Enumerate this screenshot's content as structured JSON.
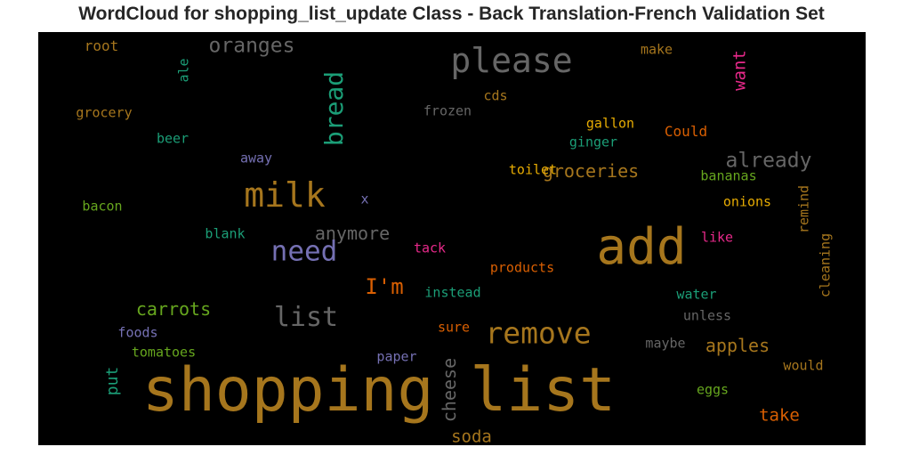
{
  "chart_data": {
    "type": "wordcloud",
    "title": "WordCloud for shopping_list_update Class - Back Translation-French Validation Set",
    "background": "#000000",
    "words": [
      {
        "text": "shopping list",
        "color": "#a6761d"
      },
      {
        "text": "add",
        "color": "#a6761d"
      },
      {
        "text": "please",
        "color": "#666666"
      },
      {
        "text": "milk",
        "color": "#a6761d"
      },
      {
        "text": "need",
        "color": "#7570b3"
      },
      {
        "text": "remove",
        "color": "#a6761d"
      },
      {
        "text": "bread",
        "color": "#1b9e77"
      },
      {
        "text": "list",
        "color": "#666666"
      },
      {
        "text": "oranges",
        "color": "#666666"
      },
      {
        "text": "already",
        "color": "#666666"
      },
      {
        "text": "I'm",
        "color": "#d95f02"
      },
      {
        "text": "groceries",
        "color": "#a6761d"
      },
      {
        "text": "carrots",
        "color": "#66a61e"
      },
      {
        "text": "apples",
        "color": "#a6761d"
      },
      {
        "text": "cheese",
        "color": "#666666"
      },
      {
        "text": "anymore",
        "color": "#666666"
      },
      {
        "text": "want",
        "color": "#e7298a"
      },
      {
        "text": "take",
        "color": "#d95f02"
      },
      {
        "text": "soda",
        "color": "#a6761d"
      },
      {
        "text": "put",
        "color": "#1b9e77"
      },
      {
        "text": "root",
        "color": "#a6761d"
      },
      {
        "text": "ale",
        "color": "#1b9e77"
      },
      {
        "text": "make",
        "color": "#a6761d"
      },
      {
        "text": "cds",
        "color": "#a6761d"
      },
      {
        "text": "grocery",
        "color": "#a6761d"
      },
      {
        "text": "frozen",
        "color": "#666666"
      },
      {
        "text": "beer",
        "color": "#1b9e77"
      },
      {
        "text": "gallon",
        "color": "#e6ab02"
      },
      {
        "text": "ginger",
        "color": "#1b9e77"
      },
      {
        "text": "Could",
        "color": "#d95f02"
      },
      {
        "text": "away",
        "color": "#7570b3"
      },
      {
        "text": "toilet",
        "color": "#e6ab02"
      },
      {
        "text": "bananas",
        "color": "#66a61e"
      },
      {
        "text": "x",
        "color": "#7570b3"
      },
      {
        "text": "remind",
        "color": "#a6761d"
      },
      {
        "text": "bacon",
        "color": "#66a61e"
      },
      {
        "text": "onions",
        "color": "#e6ab02"
      },
      {
        "text": "blank",
        "color": "#1b9e77"
      },
      {
        "text": "tack",
        "color": "#e7298a"
      },
      {
        "text": "like",
        "color": "#e7298a"
      },
      {
        "text": "cleaning",
        "color": "#a6761d"
      },
      {
        "text": "products",
        "color": "#d95f02"
      },
      {
        "text": "instead",
        "color": "#1b9e77"
      },
      {
        "text": "water",
        "color": "#1b9e77"
      },
      {
        "text": "unless",
        "color": "#666666"
      },
      {
        "text": "foods",
        "color": "#7570b3"
      },
      {
        "text": "sure",
        "color": "#d95f02"
      },
      {
        "text": "maybe",
        "color": "#666666"
      },
      {
        "text": "tomatoes",
        "color": "#66a61e"
      },
      {
        "text": "paper",
        "color": "#7570b3"
      },
      {
        "text": "would",
        "color": "#a6761d"
      },
      {
        "text": "eggs",
        "color": "#66a61e"
      }
    ]
  }
}
